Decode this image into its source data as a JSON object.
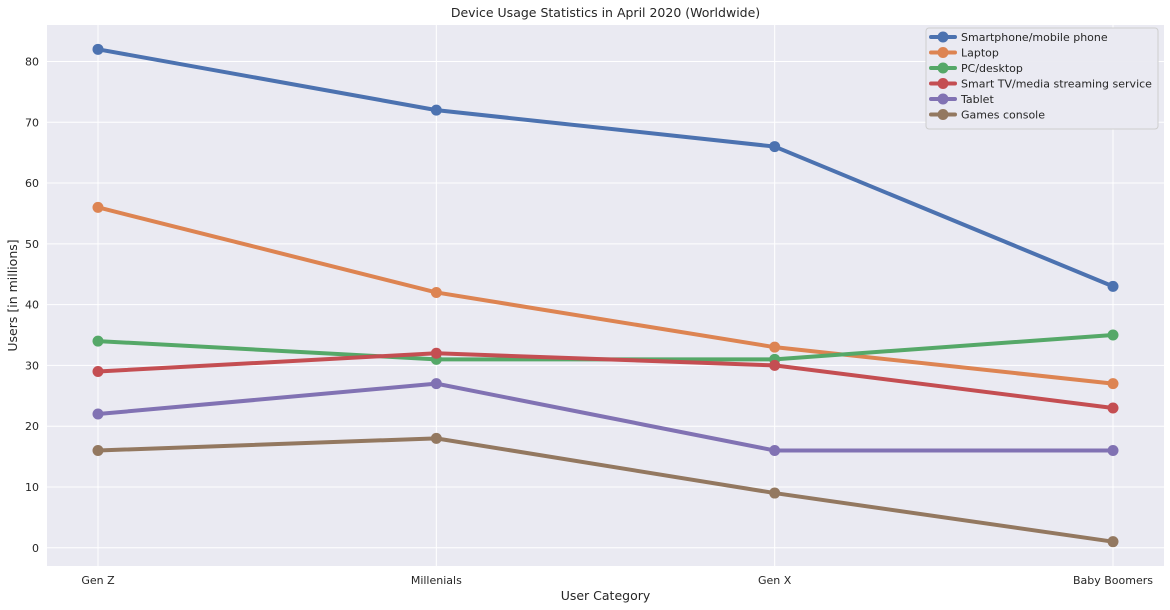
{
  "chart_data": {
    "type": "line",
    "title": "Device Usage Statistics in April 2020 (Worldwide)",
    "xlabel": "User Category",
    "ylabel": "Users [in millions]",
    "categories": [
      "Gen Z",
      "Millenials",
      "Gen X",
      "Baby Boomers"
    ],
    "ylim": [
      -3,
      86
    ],
    "yticks": [
      0,
      10,
      20,
      30,
      40,
      50,
      60,
      70,
      80
    ],
    "grid": true,
    "legend_position": "top-right",
    "background": "#eaeaf2",
    "series": [
      {
        "name": "Smartphone/mobile phone",
        "color": "#4c72b0",
        "values": [
          82,
          72,
          66,
          43
        ]
      },
      {
        "name": "Laptop",
        "color": "#dd8452",
        "values": [
          56,
          42,
          33,
          27
        ]
      },
      {
        "name": "PC/desktop",
        "color": "#55a868",
        "values": [
          34,
          31,
          31,
          35
        ]
      },
      {
        "name": "Smart TV/media streaming service",
        "color": "#c44e52",
        "values": [
          29,
          32,
          30,
          23
        ]
      },
      {
        "name": "Tablet",
        "color": "#8172b3",
        "values": [
          22,
          27,
          16,
          16
        ]
      },
      {
        "name": "Games console",
        "color": "#937860",
        "values": [
          16,
          18,
          9,
          1
        ]
      }
    ]
  }
}
